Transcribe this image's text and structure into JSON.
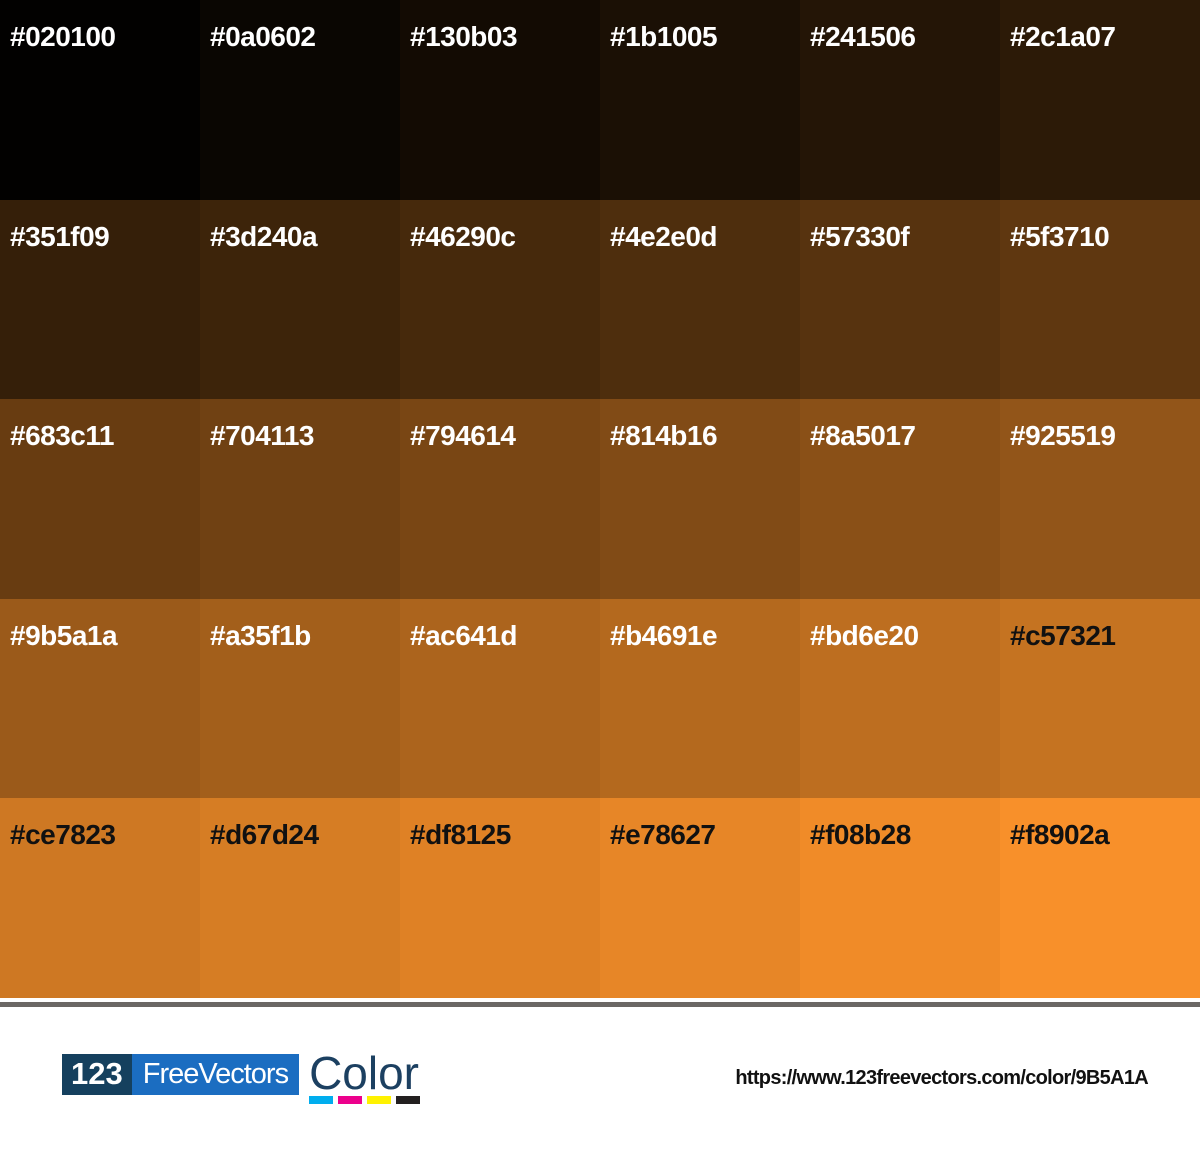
{
  "palette": {
    "base_color": "9B5A1A",
    "columns": 6,
    "rows": 5,
    "swatches": [
      {
        "hex": "#020100",
        "label_color": "#ffffff"
      },
      {
        "hex": "#0a0602",
        "label_color": "#ffffff"
      },
      {
        "hex": "#130b03",
        "label_color": "#ffffff"
      },
      {
        "hex": "#1b1005",
        "label_color": "#ffffff"
      },
      {
        "hex": "#241506",
        "label_color": "#ffffff"
      },
      {
        "hex": "#2c1a07",
        "label_color": "#ffffff"
      },
      {
        "hex": "#351f09",
        "label_color": "#ffffff"
      },
      {
        "hex": "#3d240a",
        "label_color": "#ffffff"
      },
      {
        "hex": "#46290c",
        "label_color": "#ffffff"
      },
      {
        "hex": "#4e2e0d",
        "label_color": "#ffffff"
      },
      {
        "hex": "#57330f",
        "label_color": "#ffffff"
      },
      {
        "hex": "#5f3710",
        "label_color": "#ffffff"
      },
      {
        "hex": "#683c11",
        "label_color": "#ffffff"
      },
      {
        "hex": "#704113",
        "label_color": "#ffffff"
      },
      {
        "hex": "#794614",
        "label_color": "#ffffff"
      },
      {
        "hex": "#814b16",
        "label_color": "#ffffff"
      },
      {
        "hex": "#8a5017",
        "label_color": "#ffffff"
      },
      {
        "hex": "#925519",
        "label_color": "#ffffff"
      },
      {
        "hex": "#9b5a1a",
        "label_color": "#ffffff"
      },
      {
        "hex": "#a35f1b",
        "label_color": "#ffffff"
      },
      {
        "hex": "#ac641d",
        "label_color": "#ffffff"
      },
      {
        "hex": "#b4691e",
        "label_color": "#ffffff"
      },
      {
        "hex": "#bd6e20",
        "label_color": "#ffffff"
      },
      {
        "hex": "#c57321",
        "label_color": "#111111"
      },
      {
        "hex": "#ce7823",
        "label_color": "#111111"
      },
      {
        "hex": "#d67d24",
        "label_color": "#111111"
      },
      {
        "hex": "#df8125",
        "label_color": "#111111"
      },
      {
        "hex": "#e78627",
        "label_color": "#111111"
      },
      {
        "hex": "#f08b28",
        "label_color": "#111111"
      },
      {
        "hex": "#f8902a",
        "label_color": "#111111"
      }
    ]
  },
  "divider": {
    "color": "#6b6764"
  },
  "footer": {
    "logo": {
      "number": "123",
      "number_bg": "#15405e",
      "name": "FreeVectors",
      "name_bg": "#1b6dc1",
      "product": "Color",
      "product_color": "#1c4061",
      "cmyk_bars": [
        {
          "name": "cyan",
          "color": "#00adee"
        },
        {
          "name": "magenta",
          "color": "#ec008c"
        },
        {
          "name": "yellow",
          "color": "#fff200"
        },
        {
          "name": "black",
          "color": "#231f20"
        }
      ]
    },
    "url": "https://www.123freevectors.com/color/9B5A1A"
  }
}
